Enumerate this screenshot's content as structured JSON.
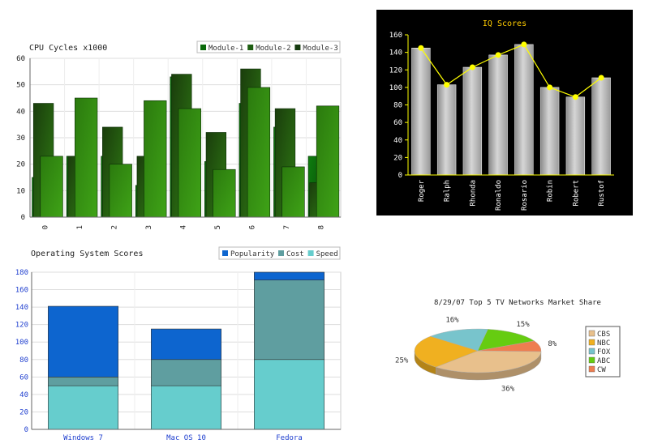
{
  "chart_data": [
    {
      "type": "bar",
      "title": "CPU Cycles x1000",
      "categories": [
        "0",
        "1",
        "2",
        "3",
        "4",
        "5",
        "6",
        "7",
        "8"
      ],
      "ylim": [
        0,
        60
      ],
      "yticks": [
        "0",
        "10",
        "20",
        "30",
        "40",
        "50",
        "60"
      ],
      "grid": true,
      "legend_position": "top-right",
      "series": [
        {
          "name": "Module-1",
          "values": [
            15,
            23,
            23,
            12,
            53,
            21,
            43,
            34,
            23
          ]
        },
        {
          "name": "Module-2",
          "values": [
            43,
            23,
            34,
            23,
            54,
            32,
            56,
            41,
            13
          ]
        },
        {
          "name": "Module-3",
          "values": [
            23,
            45,
            20,
            44,
            41,
            18,
            49,
            19,
            42
          ]
        }
      ],
      "colors": {
        "Module-1": "#0b6b0b",
        "Module-2": "#1e5e12",
        "Module-3": "#163c10"
      }
    },
    {
      "type": "bar",
      "title": "IQ Scores",
      "background": "#000000",
      "categories": [
        "Roger",
        "Ralph",
        "Rhonda",
        "Ronaldo",
        "Rosario",
        "Robin",
        "Robert",
        "Rustof"
      ],
      "ylim": [
        0,
        160
      ],
      "yticks": [
        "0",
        "20",
        "40",
        "60",
        "80",
        "100",
        "120",
        "140",
        "160"
      ],
      "values": [
        145,
        103,
        123,
        137,
        149,
        100,
        89,
        111
      ],
      "line_overlay": true,
      "colors": {
        "bar": "#b8b8b8",
        "line": "#ffff00",
        "title": "#ffcc00"
      }
    },
    {
      "type": "bar",
      "stacked": true,
      "title": "Operating System Scores",
      "categories": [
        "Windows 7",
        "Mac OS 10",
        "Fedora"
      ],
      "ylim": [
        0,
        180
      ],
      "yticks": [
        "0",
        "20",
        "40",
        "60",
        "80",
        "100",
        "120",
        "140",
        "160",
        "180"
      ],
      "grid": true,
      "legend_position": "top-right",
      "series": [
        {
          "name": "Popularity",
          "values": [
            81,
            35,
            14
          ]
        },
        {
          "name": "Cost",
          "values": [
            10,
            30,
            91
          ]
        },
        {
          "name": "Speed",
          "values": [
            50,
            50,
            80
          ]
        }
      ],
      "colors": {
        "Popularity": "#0d65cf",
        "Cost": "#5f9ea0",
        "Speed": "#66cdcd"
      }
    },
    {
      "type": "pie",
      "title": "8/29/07 Top 5 TV Networks Market Share",
      "legend_position": "right",
      "slices": [
        {
          "label": "CBS",
          "value": 36,
          "display": "36%"
        },
        {
          "label": "NBC",
          "value": 25,
          "display": "25%"
        },
        {
          "label": "FOX",
          "value": 16,
          "display": "16%"
        },
        {
          "label": "ABC",
          "value": 15,
          "display": "15%"
        },
        {
          "label": "CW",
          "value": 8,
          "display": "8%"
        }
      ],
      "colors": {
        "CBS": "#e8c08c",
        "NBC": "#f0b020",
        "FOX": "#78c4cc",
        "ABC": "#66cc11",
        "CW": "#ee7e50"
      }
    }
  ]
}
